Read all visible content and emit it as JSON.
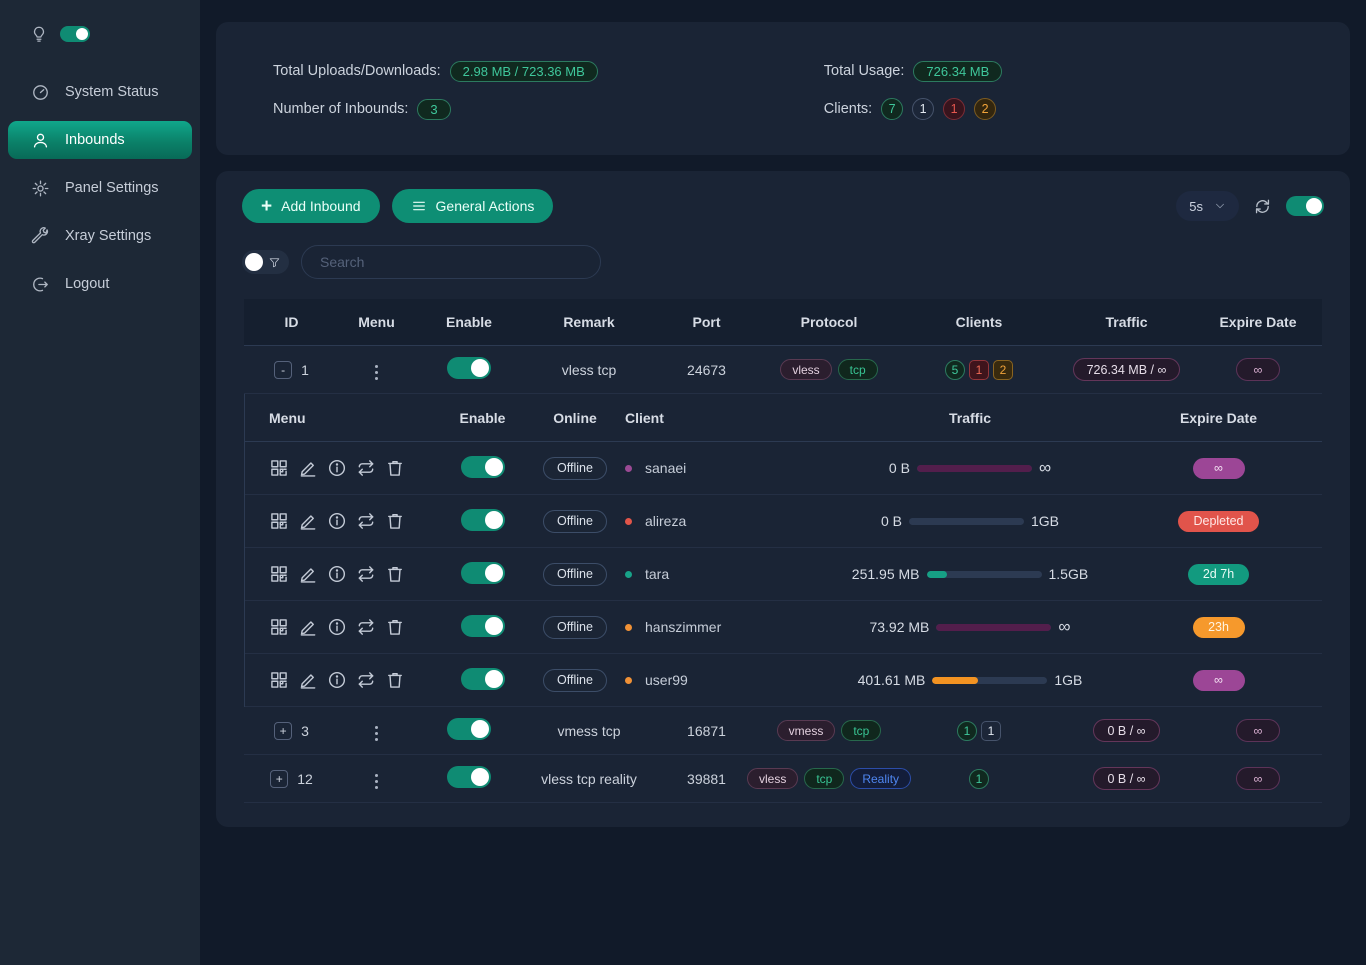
{
  "colors": {
    "accent_teal": "#0e8e74",
    "toggle_on": "#0f8b73",
    "page_bg": "#111a29",
    "card_bg": "#1a2435",
    "sidebar_bg": "#1d2836",
    "status_purple": "#9c4696",
    "status_red": "#e1544b",
    "status_teal": "#129a7f",
    "status_orange": "#f6992c"
  },
  "sidebar": {
    "items": [
      {
        "label": "System Status",
        "icon": "dashboard-icon"
      },
      {
        "label": "Inbounds",
        "icon": "user-icon",
        "active": true
      },
      {
        "label": "Panel Settings",
        "icon": "gear-icon"
      },
      {
        "label": "Xray Settings",
        "icon": "wrench-icon"
      },
      {
        "label": "Logout",
        "icon": "logout-icon"
      }
    ]
  },
  "stats": {
    "uploads_label": "Total Uploads/Downloads:",
    "uploads_value": "2.98 MB / 723.36 MB",
    "inbounds_label": "Number of Inbounds:",
    "inbounds_value": "3",
    "usage_label": "Total Usage:",
    "usage_value": "726.34 MB",
    "clients_label": "Clients:",
    "clients": [
      {
        "value": "7",
        "fg": "#3fc79b",
        "bd": "#2c7a5f",
        "bg": "#10291f"
      },
      {
        "value": "1",
        "fg": "#e2e8f0",
        "bd": "#46536b",
        "bg": "#1c2638"
      },
      {
        "value": "1",
        "fg": "#e4574e",
        "bd": "#7e2d36",
        "bg": "#38141d"
      },
      {
        "value": "2",
        "fg": "#f0a33a",
        "bd": "#7e5c20",
        "bg": "#33260e"
      }
    ]
  },
  "toolbar": {
    "add_inbound": "Add Inbound",
    "general_actions": "General Actions",
    "refresh_interval": "5s"
  },
  "search": {
    "placeholder": "Search"
  },
  "table": {
    "headers": [
      "ID",
      "Menu",
      "Enable",
      "Remark",
      "Port",
      "Protocol",
      "Clients",
      "Traffic",
      "Expire Date"
    ],
    "sub_headers": [
      "Menu",
      "Enable",
      "Online",
      "Client",
      "Traffic",
      "Expire Date"
    ],
    "inbounds": [
      {
        "id": "1",
        "expander": "-",
        "remark": "vless tcp",
        "port": "24673",
        "protocols": [
          {
            "label": "vless",
            "fg": "#e3d0de",
            "bd": "#593a52",
            "bg": "#2b1e2e"
          },
          {
            "label": "tcp",
            "fg": "#38c493",
            "bd": "#27684c",
            "bg": "#10271d"
          }
        ],
        "clients": [
          {
            "value": "5",
            "fg": "#3fc79b",
            "bd": "#2c7a5f",
            "bg": "#10291f"
          },
          {
            "value": "1",
            "fg": "#ef6a55",
            "bd": "#93353a",
            "bg": "#3f141c"
          },
          {
            "value": "2",
            "fg": "#f0a33a",
            "bd": "#8a6420",
            "bg": "#382a0e"
          }
        ],
        "traffic": "726.34 MB / ∞",
        "expire": "∞"
      },
      {
        "id": "3",
        "expander": "+",
        "remark": "vmess tcp",
        "port": "16871",
        "protocols": [
          {
            "label": "vmess",
            "fg": "#e3d0de",
            "bd": "#593a52",
            "bg": "#2b1e2e"
          },
          {
            "label": "tcp",
            "fg": "#38c493",
            "bd": "#27684c",
            "bg": "#10271d"
          }
        ],
        "clients": [
          {
            "value": "1",
            "fg": "#3fc79b",
            "bd": "#2c7a5f",
            "bg": "#10291f"
          },
          {
            "value": "1",
            "fg": "#e2e8f0",
            "bd": "#46536b",
            "bg": "#1c2638"
          }
        ],
        "traffic": "0 B / ∞",
        "expire": "∞"
      },
      {
        "id": "12",
        "expander": "+",
        "remark": "vless tcp reality",
        "port": "39881",
        "protocols": [
          {
            "label": "vless",
            "fg": "#e3d0de",
            "bd": "#593a52",
            "bg": "#2b1e2e"
          },
          {
            "label": "tcp",
            "fg": "#38c493",
            "bd": "#27684c",
            "bg": "#10271d"
          },
          {
            "label": "Reality",
            "fg": "#4f86f0",
            "bd": "#2c4da8",
            "bg": "#131d3a"
          }
        ],
        "clients": [
          {
            "value": "1",
            "fg": "#3fc79b",
            "bd": "#2c7a5f",
            "bg": "#10291f"
          }
        ],
        "traffic": "0 B / ∞",
        "expire": "∞"
      }
    ],
    "client_rows": [
      {
        "name": "sanaei",
        "status": "Offline",
        "dot": {
          "bg": "#9b4a94"
        },
        "used": "0 B",
        "limit": "∞",
        "bar": {
          "pct": 100,
          "color": "#531e4c"
        },
        "expire": {
          "label": "∞",
          "fg": "#f3dff2",
          "bg": "#9c4696"
        }
      },
      {
        "name": "alireza",
        "status": "Offline",
        "dot": {
          "bg": "#e25549"
        },
        "used": "0 B",
        "limit": "1GB",
        "bar": {
          "pct": 0,
          "color": "#16a085"
        },
        "expire": {
          "label": "Depleted",
          "fg": "#ffe9e7",
          "bg": "#e1544b"
        }
      },
      {
        "name": "tara",
        "status": "Offline",
        "dot": {
          "bg": "#18a389"
        },
        "used": "251.95 MB",
        "limit": "1.5GB",
        "bar": {
          "pct": 18,
          "color": "#16a085"
        },
        "expire": {
          "label": "2d 7h",
          "fg": "#e9fbf5",
          "bg": "#129a7f"
        }
      },
      {
        "name": "hanszimmer",
        "status": "Offline",
        "dot": {
          "bg": "#f09136"
        },
        "used": "73.92 MB",
        "limit": "∞",
        "bar": {
          "pct": 100,
          "color": "#531e4c"
        },
        "expire": {
          "label": "23h",
          "fg": "#fff4e2",
          "bg": "#f6992c"
        }
      },
      {
        "name": "user99",
        "status": "Offline",
        "dot": {
          "bg": "#f09136"
        },
        "used": "401.61 MB",
        "limit": "1GB",
        "bar": {
          "pct": 40,
          "color": "#f39322"
        },
        "expire": {
          "label": "∞",
          "fg": "#f3dff2",
          "bg": "#9c4696"
        }
      }
    ]
  }
}
